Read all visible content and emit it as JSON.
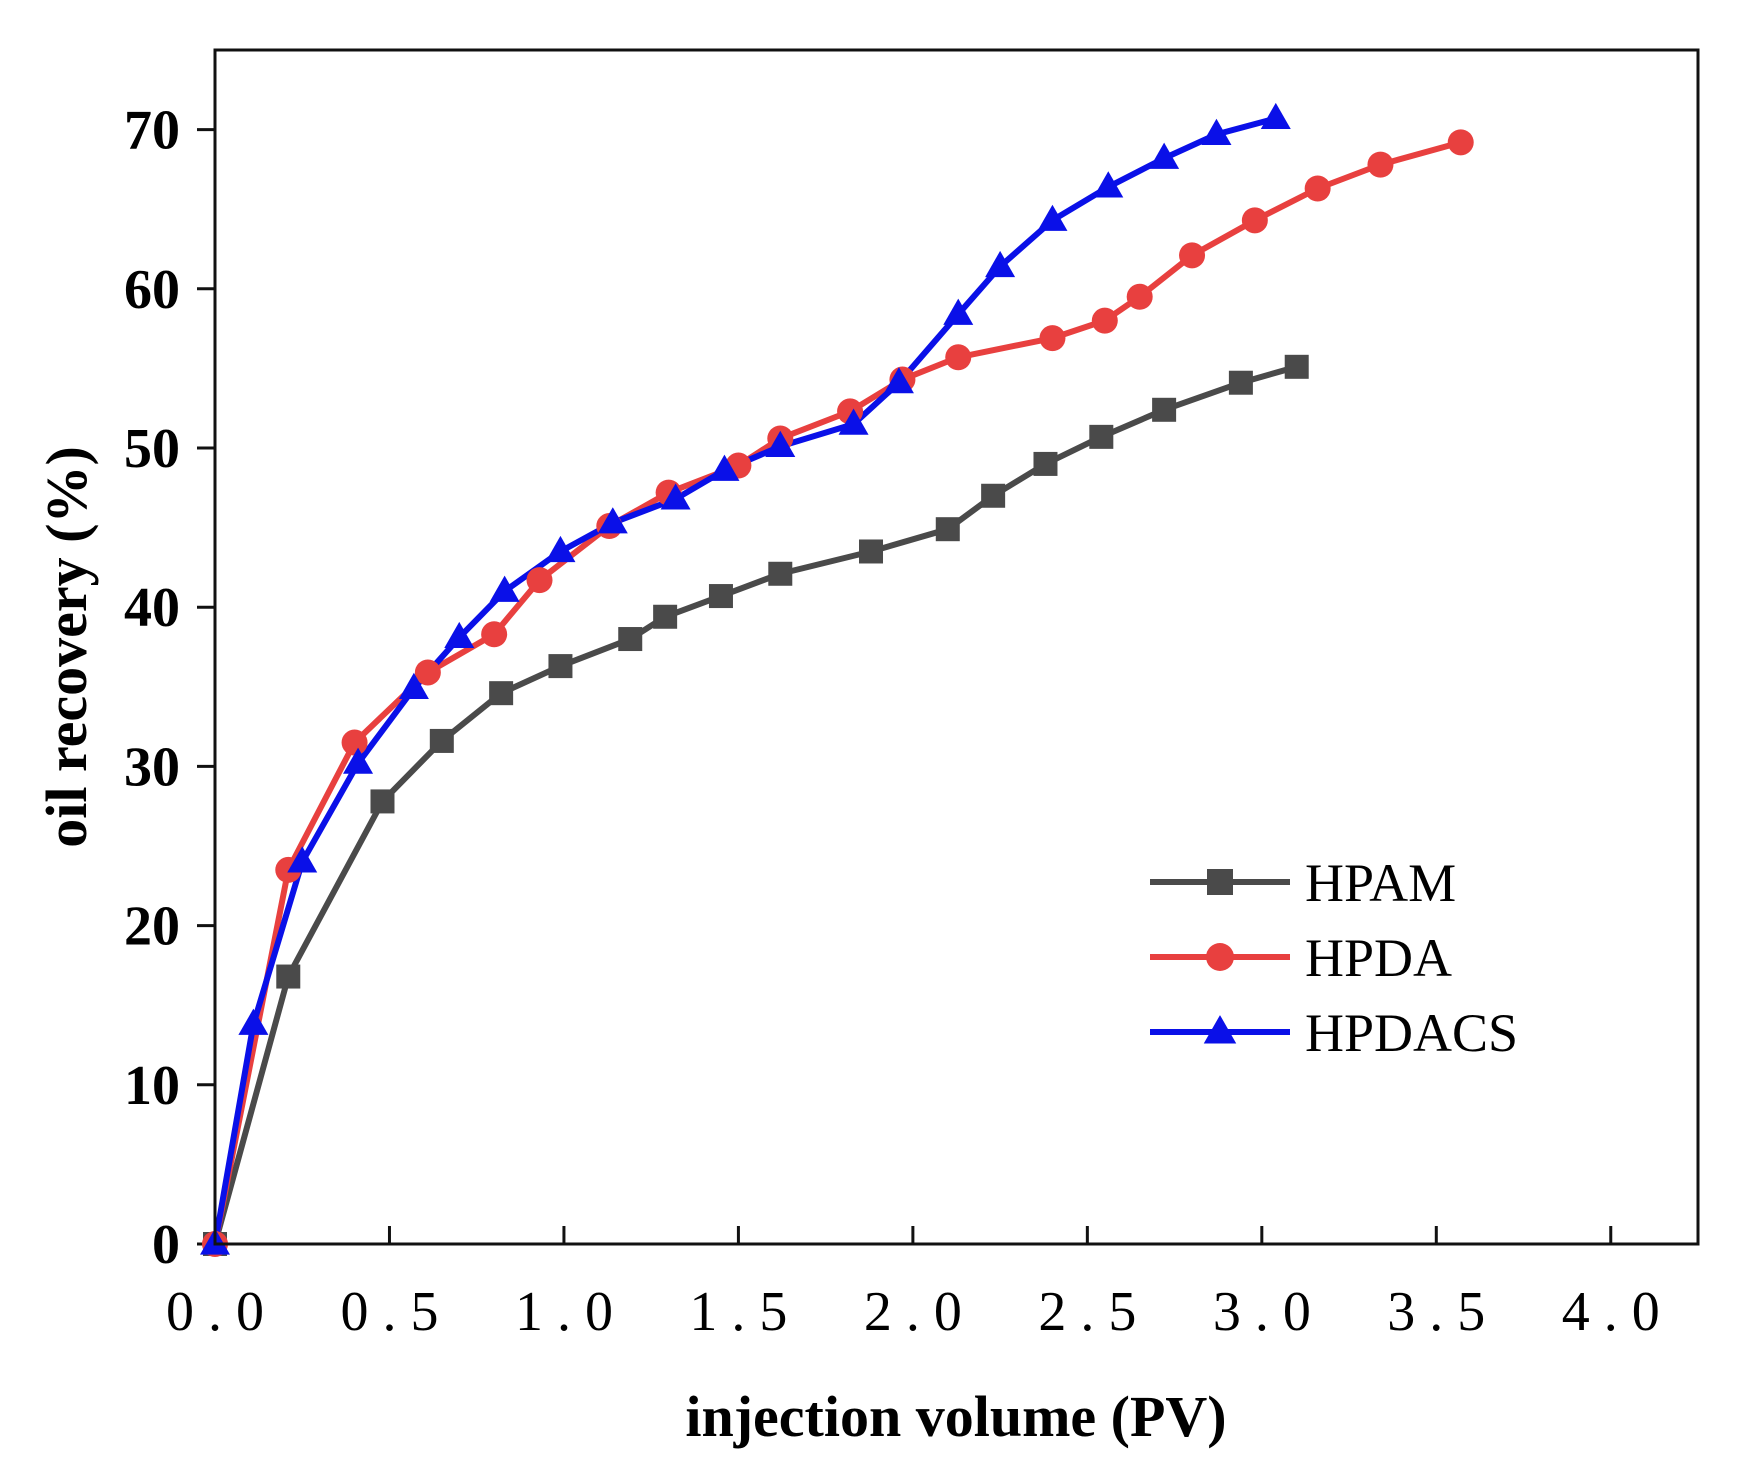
{
  "chart_data": {
    "type": "line",
    "xlabel": "injection volume (PV)",
    "ylabel": "oil recovery (%)",
    "xlim": [
      0,
      4.25
    ],
    "ylim": [
      0,
      75
    ],
    "x_ticks": [
      "0.0",
      "0.5",
      "1.0",
      "1.5",
      "2.0",
      "2.5",
      "3.0",
      "3.5",
      "4.0"
    ],
    "x_tick_values": [
      0,
      0.5,
      1.0,
      1.5,
      2.0,
      2.5,
      3.0,
      3.5,
      4.0
    ],
    "y_ticks": [
      "0",
      "10",
      "20",
      "30",
      "40",
      "50",
      "60",
      "70"
    ],
    "y_tick_values": [
      0,
      10,
      20,
      30,
      40,
      50,
      60,
      70
    ],
    "grid": false,
    "legend_position": "lower-right",
    "series": [
      {
        "name": "HPAM",
        "color": "#4a4a4a",
        "marker": "square",
        "x": [
          0,
          0.21,
          0.48,
          0.65,
          0.82,
          0.99,
          1.19,
          1.29,
          1.45,
          1.62,
          1.88,
          2.1,
          2.23,
          2.38,
          2.54,
          2.72,
          2.94,
          3.1
        ],
        "y": [
          0,
          16.8,
          27.8,
          31.6,
          34.6,
          36.3,
          38.0,
          39.4,
          40.7,
          42.1,
          43.5,
          44.9,
          47.0,
          49.0,
          50.7,
          52.4,
          54.1,
          55.1
        ]
      },
      {
        "name": "HPDA",
        "color": "#e8403f",
        "marker": "circle",
        "x": [
          0,
          0.21,
          0.4,
          0.61,
          0.8,
          0.93,
          1.13,
          1.3,
          1.5,
          1.62,
          1.82,
          1.97,
          2.13,
          2.4,
          2.55,
          2.65,
          2.8,
          2.98,
          3.16,
          3.34,
          3.57
        ],
        "y": [
          0,
          23.5,
          31.5,
          35.9,
          38.3,
          41.7,
          45.1,
          47.2,
          48.9,
          50.6,
          52.3,
          54.3,
          55.7,
          56.9,
          58.0,
          59.5,
          62.1,
          64.3,
          66.3,
          67.8,
          69.2
        ]
      },
      {
        "name": "HPDACS",
        "color": "#0a10e8",
        "marker": "triangle",
        "x": [
          0,
          0.11,
          0.25,
          0.41,
          0.57,
          0.7,
          0.83,
          0.99,
          1.14,
          1.32,
          1.46,
          1.62,
          1.83,
          1.96,
          2.13,
          2.25,
          2.4,
          2.56,
          2.72,
          2.87,
          3.04
        ],
        "y": [
          0,
          13.8,
          24.0,
          30.2,
          34.9,
          38.1,
          41.0,
          43.5,
          45.3,
          46.8,
          48.6,
          50.1,
          51.5,
          54.1,
          58.4,
          61.4,
          64.3,
          66.4,
          68.2,
          69.7,
          70.7
        ]
      }
    ]
  }
}
